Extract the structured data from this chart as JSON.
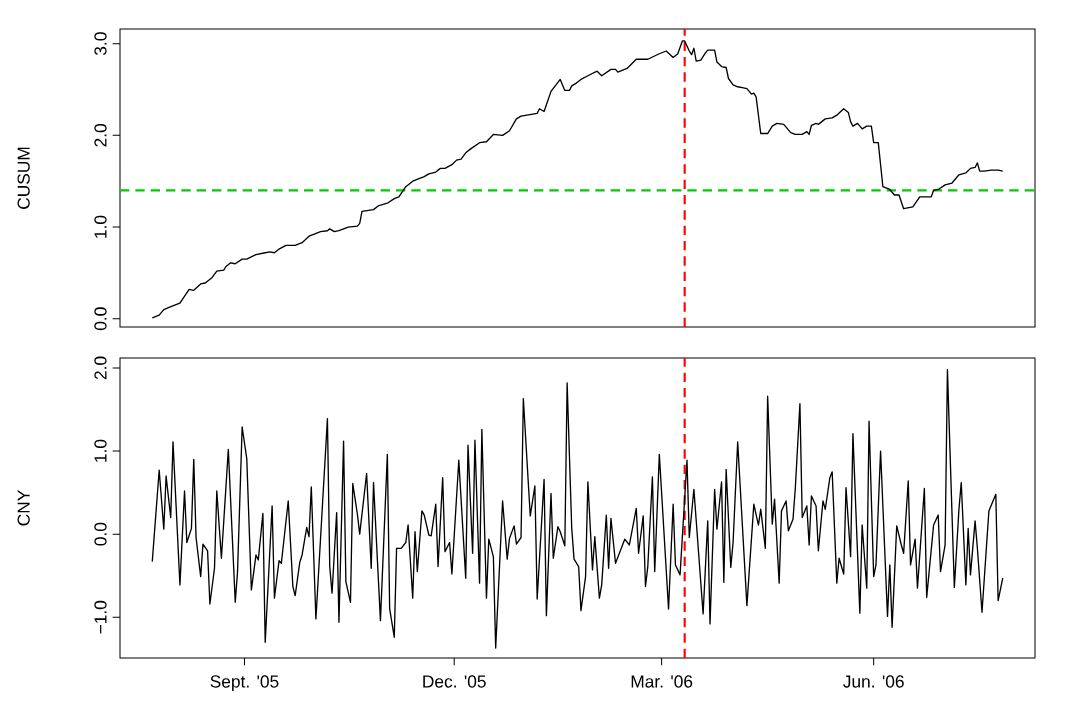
{
  "chart_data": [
    {
      "type": "line",
      "ylabel": "CUSUM",
      "color": "#000000",
      "tick_labels": "y",
      "xlim": [
        "2005-07-09",
        "2006-08-10"
      ],
      "ylim": [
        -0.09,
        3.16
      ],
      "yticks": [
        {
          "value": 0,
          "label": "0.0"
        },
        {
          "value": 1,
          "label": "1.0"
        },
        {
          "value": 2,
          "label": "2.0"
        },
        {
          "value": 3,
          "label": "3.0"
        }
      ],
      "ref_lines": [
        {
          "axis": "y",
          "value": 1.4,
          "color": "#00cd00",
          "line_style": "dashed"
        },
        {
          "axis": "x",
          "value": "2006-03-11",
          "color": "#ff0000",
          "line_style": "dashed"
        }
      ],
      "x": [
        "2005-07-23",
        "2005-07-26",
        "2005-07-28",
        "2005-07-30",
        "2005-08-02",
        "2005-08-04",
        "2005-08-08",
        "2005-08-10",
        "2005-08-13",
        "2005-08-15",
        "2005-08-18",
        "2005-08-20",
        "2005-08-23",
        "2005-08-24",
        "2005-08-26",
        "2005-08-28",
        "2005-08-31",
        "2005-09-02",
        "2005-09-06",
        "2005-09-10",
        "2005-09-12",
        "2005-09-14",
        "2005-09-16",
        "2005-09-19",
        "2005-09-23",
        "2005-09-26",
        "2005-09-29",
        "2005-10-01",
        "2005-10-04",
        "2005-10-07",
        "2005-10-08",
        "2005-10-10",
        "2005-10-12",
        "2005-10-16",
        "2005-10-20",
        "2005-10-21",
        "2005-10-22",
        "2005-10-27",
        "2005-10-29",
        "2005-11-02",
        "2005-11-05",
        "2005-11-07",
        "2005-11-10",
        "2005-11-13",
        "2005-11-16",
        "2005-11-18",
        "2005-11-20",
        "2005-11-23",
        "2005-11-25",
        "2005-11-27",
        "2005-11-30",
        "2005-12-02",
        "2005-12-04",
        "2005-12-06",
        "2005-12-08",
        "2005-12-12",
        "2005-12-15",
        "2005-12-18",
        "2005-12-22",
        "2005-12-25",
        "2005-12-28",
        "2005-12-30",
        "2006-01-06",
        "2006-01-07",
        "2006-01-09",
        "2006-01-12",
        "2006-01-16",
        "2006-01-18",
        "2006-01-20",
        "2006-01-21",
        "2006-01-23",
        "2006-01-25",
        "2006-01-28",
        "2006-02-01",
        "2006-02-03",
        "2006-02-07",
        "2006-02-09",
        "2006-02-10",
        "2006-02-14",
        "2006-02-18",
        "2006-02-23",
        "2006-02-28",
        "2006-03-03",
        "2006-03-06",
        "2006-03-08",
        "2006-03-10",
        "2006-03-11",
        "2006-03-13",
        "2006-03-14",
        "2006-03-15",
        "2006-03-16",
        "2006-03-18",
        "2006-03-20",
        "2006-03-21",
        "2006-03-24",
        "2006-03-25",
        "2006-03-27",
        "2006-03-29",
        "2006-03-30",
        "2006-04-01",
        "2006-04-03",
        "2006-04-05",
        "2006-04-07",
        "2006-04-09",
        "2006-04-10",
        "2006-04-11",
        "2006-04-13",
        "2006-04-16",
        "2006-04-18",
        "2006-04-20",
        "2006-04-23",
        "2006-04-26",
        "2006-04-28",
        "2006-05-01",
        "2006-05-03",
        "2006-05-04",
        "2006-05-05",
        "2006-05-07",
        "2006-05-08",
        "2006-05-11",
        "2006-05-14",
        "2006-05-16",
        "2006-05-19",
        "2006-05-21",
        "2006-05-22",
        "2006-05-23",
        "2006-05-25",
        "2006-05-27",
        "2006-05-29",
        "2006-05-31",
        "2006-06-01",
        "2006-06-03",
        "2006-06-05",
        "2006-06-08",
        "2006-06-10",
        "2006-06-12",
        "2006-06-14",
        "2006-06-18",
        "2006-06-21",
        "2006-06-24",
        "2006-06-26",
        "2006-06-27",
        "2006-06-29",
        "2006-07-02",
        "2006-07-05",
        "2006-07-08",
        "2006-07-11",
        "2006-07-13",
        "2006-07-15",
        "2006-07-16",
        "2006-07-17",
        "2006-07-19",
        "2006-07-22",
        "2006-07-25",
        "2006-07-27"
      ],
      "values": [
        0.01,
        0.04,
        0.1,
        0.12,
        0.15,
        0.17,
        0.32,
        0.31,
        0.38,
        0.39,
        0.45,
        0.52,
        0.53,
        0.57,
        0.61,
        0.6,
        0.65,
        0.65,
        0.7,
        0.72,
        0.73,
        0.72,
        0.76,
        0.8,
        0.8,
        0.83,
        0.9,
        0.92,
        0.95,
        0.96,
        0.98,
        0.95,
        0.96,
        1.0,
        1.01,
        1.04,
        1.17,
        1.19,
        1.23,
        1.26,
        1.31,
        1.33,
        1.44,
        1.5,
        1.53,
        1.55,
        1.58,
        1.6,
        1.64,
        1.64,
        1.68,
        1.73,
        1.74,
        1.81,
        1.85,
        1.92,
        1.93,
        2.01,
        2.0,
        2.05,
        2.18,
        2.21,
        2.24,
        2.29,
        2.26,
        2.48,
        2.61,
        2.49,
        2.49,
        2.54,
        2.57,
        2.61,
        2.65,
        2.7,
        2.65,
        2.72,
        2.72,
        2.69,
        2.73,
        2.83,
        2.83,
        2.89,
        2.92,
        2.85,
        2.89,
        3.03,
        3.03,
        2.92,
        2.88,
        2.95,
        2.81,
        2.82,
        2.9,
        2.93,
        2.93,
        2.8,
        2.75,
        2.74,
        2.62,
        2.55,
        2.53,
        2.52,
        2.51,
        2.45,
        2.46,
        2.42,
        2.02,
        2.02,
        2.1,
        2.13,
        2.12,
        2.03,
        2.01,
        2.01,
        2.04,
        2.01,
        2.11,
        2.13,
        2.12,
        2.18,
        2.19,
        2.22,
        2.29,
        2.25,
        2.15,
        2.1,
        2.13,
        2.07,
        2.1,
        2.1,
        1.92,
        1.92,
        1.44,
        1.41,
        1.35,
        1.35,
        1.2,
        1.22,
        1.33,
        1.33,
        1.33,
        1.4,
        1.41,
        1.46,
        1.48,
        1.57,
        1.59,
        1.64,
        1.65,
        1.7,
        1.61,
        1.61,
        1.62,
        1.62,
        1.61
      ]
    },
    {
      "type": "line",
      "ylabel": "CNY",
      "color": "#000000",
      "xlim": [
        "2005-07-09",
        "2006-08-10"
      ],
      "ylim": [
        -1.49,
        2.12
      ],
      "xticks": [
        {
          "value": "2005-09-01",
          "label": "Sept. '05"
        },
        {
          "value": "2005-12-01",
          "label": "Dec. '05"
        },
        {
          "value": "2006-03-01",
          "label": "Mar. '06"
        },
        {
          "value": "2006-06-01",
          "label": "Jun. '06"
        }
      ],
      "yticks": [
        {
          "value": -1,
          "label": "−1.0"
        },
        {
          "value": 0,
          "label": "0.0"
        },
        {
          "value": 1,
          "label": "1.0"
        },
        {
          "value": 2,
          "label": "2.0"
        }
      ],
      "ref_lines": [
        {
          "axis": "x",
          "value": "2006-03-11",
          "color": "#ff0000",
          "line_style": "dashed"
        }
      ],
      "x": [
        "2005-07-23",
        "2005-07-26",
        "2005-07-28",
        "2005-07-29",
        "2005-07-31",
        "2005-08-01",
        "2005-08-04",
        "2005-08-06",
        "2005-08-07",
        "2005-08-09",
        "2005-08-10",
        "2005-08-11",
        "2005-08-13",
        "2005-08-14",
        "2005-08-16",
        "2005-08-17",
        "2005-08-19",
        "2005-08-20",
        "2005-08-22",
        "2005-08-25",
        "2005-08-28",
        "2005-08-29",
        "2005-08-31",
        "2005-09-02",
        "2005-09-04",
        "2005-09-06",
        "2005-09-07",
        "2005-09-09",
        "2005-09-10",
        "2005-09-13",
        "2005-09-14",
        "2005-09-16",
        "2005-09-17",
        "2005-09-20",
        "2005-09-22",
        "2005-09-23",
        "2005-09-25",
        "2005-09-26",
        "2005-09-28",
        "2005-09-29",
        "2005-09-30",
        "2005-10-02",
        "2005-10-07",
        "2005-10-08",
        "2005-10-09",
        "2005-10-11",
        "2005-10-12",
        "2005-10-14",
        "2005-10-15",
        "2005-10-17",
        "2005-10-18",
        "2005-10-20",
        "2005-10-21",
        "2005-10-24",
        "2005-10-26",
        "2005-10-27",
        "2005-10-30",
        "2005-11-02",
        "2005-11-03",
        "2005-11-05",
        "2005-11-06",
        "2005-11-08",
        "2005-11-10",
        "2005-11-11",
        "2005-11-13",
        "2005-11-14",
        "2005-11-15",
        "2005-11-17",
        "2005-11-18",
        "2005-11-20",
        "2005-11-21",
        "2005-11-23",
        "2005-11-24",
        "2005-11-26",
        "2005-11-27",
        "2005-11-29",
        "2005-11-30",
        "2005-12-03",
        "2005-12-06",
        "2005-12-07",
        "2005-12-09",
        "2005-12-10",
        "2005-12-12",
        "2005-12-13",
        "2005-12-15",
        "2005-12-16",
        "2005-12-18",
        "2005-12-19",
        "2005-12-22",
        "2005-12-24",
        "2005-12-25",
        "2005-12-27",
        "2005-12-28",
        "2005-12-30",
        "2005-12-31",
        "2006-01-03",
        "2006-01-05",
        "2006-01-06",
        "2006-01-09",
        "2006-01-10",
        "2006-01-12",
        "2006-01-13",
        "2006-01-15",
        "2006-01-16",
        "2006-01-18",
        "2006-01-19",
        "2006-01-21",
        "2006-01-22",
        "2006-01-24",
        "2006-01-25",
        "2006-01-27",
        "2006-01-28",
        "2006-01-30",
        "2006-01-31",
        "2006-02-02",
        "2006-02-03",
        "2006-02-05",
        "2006-02-06",
        "2006-02-07",
        "2006-02-09",
        "2006-02-13",
        "2006-02-15",
        "2006-02-18",
        "2006-02-19",
        "2006-02-21",
        "2006-02-22",
        "2006-02-23",
        "2006-02-25",
        "2006-02-26",
        "2006-02-28",
        "2006-03-04",
        "2006-03-06",
        "2006-03-07",
        "2006-03-09",
        "2006-03-12",
        "2006-03-13",
        "2006-03-15",
        "2006-03-19",
        "2006-03-21",
        "2006-03-22",
        "2006-03-24",
        "2006-03-25",
        "2006-03-27",
        "2006-03-28",
        "2006-03-29",
        "2006-03-31",
        "2006-04-01",
        "2006-04-03",
        "2006-04-07",
        "2006-04-10",
        "2006-04-12",
        "2006-04-13",
        "2006-04-15",
        "2006-04-16",
        "2006-04-18",
        "2006-04-19",
        "2006-04-21",
        "2006-04-22",
        "2006-04-24",
        "2006-04-25",
        "2006-04-27",
        "2006-04-28",
        "2006-04-30",
        "2006-05-01",
        "2006-05-03",
        "2006-05-04",
        "2006-05-05",
        "2006-05-07",
        "2006-05-08",
        "2006-05-10",
        "2006-05-11",
        "2006-05-13",
        "2006-05-14",
        "2006-05-16",
        "2006-05-17",
        "2006-05-19",
        "2006-05-20",
        "2006-05-22",
        "2006-05-23",
        "2006-05-26",
        "2006-05-27",
        "2006-05-29",
        "2006-05-30",
        "2006-06-01",
        "2006-06-02",
        "2006-06-04",
        "2006-06-07",
        "2006-06-08",
        "2006-06-09",
        "2006-06-11",
        "2006-06-13",
        "2006-06-14",
        "2006-06-16",
        "2006-06-17",
        "2006-06-19",
        "2006-06-20",
        "2006-06-23",
        "2006-06-24",
        "2006-06-27",
        "2006-06-29",
        "2006-06-30",
        "2006-07-02",
        "2006-07-03",
        "2006-07-06",
        "2006-07-08",
        "2006-07-09",
        "2006-07-11",
        "2006-07-12",
        "2006-07-13",
        "2006-07-15",
        "2006-07-16",
        "2006-07-18",
        "2006-07-21",
        "2006-07-24",
        "2006-07-25",
        "2006-07-27"
      ],
      "values": [
        -0.33,
        0.77,
        0.06,
        0.7,
        0.2,
        1.11,
        -0.61,
        0.52,
        -0.1,
        0.07,
        0.9,
        -0.04,
        -0.51,
        -0.12,
        -0.2,
        -0.84,
        -0.41,
        0.52,
        -0.29,
        1.02,
        -0.82,
        -0.45,
        1.29,
        0.91,
        -0.67,
        -0.25,
        -0.31,
        0.25,
        -1.3,
        0.34,
        -0.77,
        -0.32,
        -0.35,
        0.4,
        -0.63,
        -0.74,
        -0.34,
        -0.25,
        0.08,
        -0.03,
        0.57,
        -1.02,
        1.39,
        -0.39,
        -0.71,
        0.26,
        -1.06,
        1.12,
        -0.57,
        -0.82,
        0.61,
        0.24,
        0.0,
        0.73,
        -0.41,
        0.62,
        -1.04,
        0.96,
        -0.9,
        -1.24,
        -0.17,
        -0.17,
        -0.1,
        0.11,
        -0.77,
        0.03,
        -0.45,
        0.28,
        0.23,
        -0.01,
        -0.02,
        0.36,
        -0.39,
        0.68,
        -0.21,
        -0.1,
        -0.48,
        0.89,
        -0.53,
        1.07,
        -0.23,
        1.13,
        -0.59,
        1.26,
        -0.77,
        -0.06,
        -0.27,
        -1.37,
        0.4,
        -0.3,
        -0.05,
        0.1,
        -0.12,
        -0.04,
        1.63,
        0.22,
        0.58,
        -0.78,
        0.66,
        -0.98,
        0.49,
        -0.29,
        0.09,
        0.03,
        -0.14,
        1.82,
        0.07,
        -0.3,
        -0.39,
        -0.92,
        -0.51,
        0.63,
        -0.43,
        -0.03,
        -0.77,
        -0.61,
        0.23,
        -0.41,
        0.19,
        -0.35,
        -0.06,
        -0.13,
        0.31,
        -0.23,
        0.22,
        -0.63,
        -0.39,
        0.69,
        -0.45,
        0.96,
        -0.9,
        0.36,
        -0.37,
        -0.49,
        0.89,
        -0.04,
        0.54,
        -0.96,
        0.16,
        -1.08,
        0.54,
        0.06,
        0.63,
        -0.58,
        0.78,
        -0.4,
        -0.1,
        1.11,
        -0.86,
        0.36,
        0.11,
        0.3,
        -0.17,
        1.66,
        0.12,
        0.42,
        -0.59,
        0.28,
        0.4,
        0.04,
        0.18,
        0.55,
        1.57,
        0.2,
        0.34,
        -0.13,
        0.46,
        0.34,
        -0.2,
        0.4,
        0.3,
        0.68,
        0.75,
        -0.59,
        -0.29,
        -0.48,
        0.56,
        -0.27,
        1.21,
        -0.95,
        0.11,
        -0.65,
        1.36,
        -0.51,
        -0.37,
        1.0,
        -0.99,
        -0.37,
        -1.12,
        0.1,
        -0.13,
        -0.23,
        0.64,
        -0.37,
        -0.06,
        -0.65,
        0.55,
        -0.76,
        0.11,
        0.23,
        -0.45,
        -0.13,
        1.98,
        -0.64,
        0.3,
        0.62,
        -0.61,
        0.07,
        -0.49,
        0.16,
        -0.17,
        -0.94,
        0.28,
        0.48,
        -0.8,
        -0.53
      ]
    }
  ]
}
